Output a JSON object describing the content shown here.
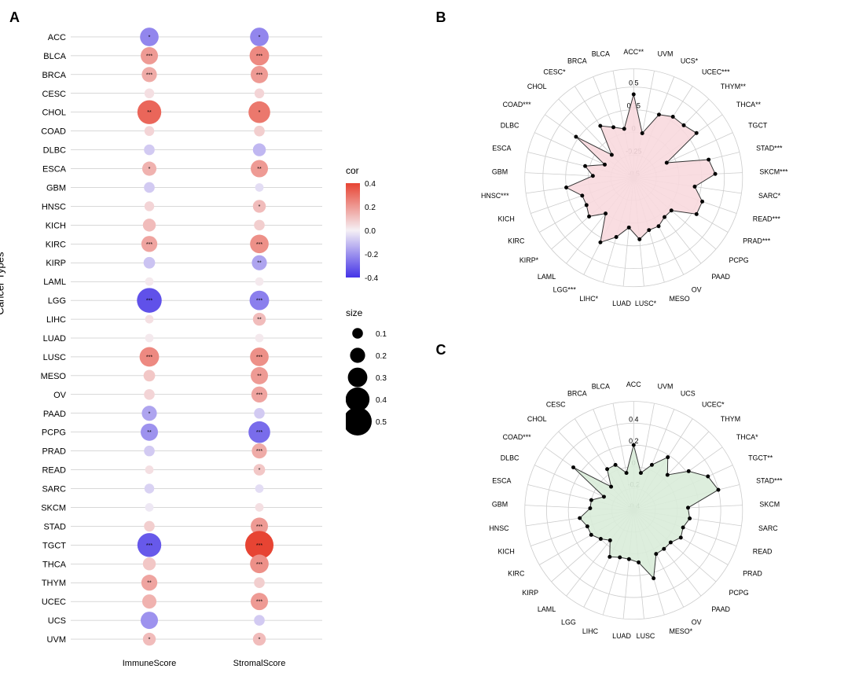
{
  "panelA": {
    "label": "A",
    "y_axis_title": "Cancer Types",
    "x_categories": [
      "ImmuneScore",
      "StromalScore"
    ],
    "cancers": [
      "ACC",
      "BLCA",
      "BRCA",
      "CESC",
      "CHOL",
      "COAD",
      "DLBC",
      "ESCA",
      "GBM",
      "HNSC",
      "KICH",
      "KIRC",
      "KIRP",
      "LAML",
      "LGG",
      "LIHC",
      "LUAD",
      "LUSC",
      "MESO",
      "OV",
      "PAAD",
      "PCPG",
      "PRAD",
      "READ",
      "SARC",
      "SKCM",
      "STAD",
      "TGCT",
      "THCA",
      "THYM",
      "UCEC",
      "UCS",
      "UVM"
    ],
    "points": {
      "ImmuneScore": [
        {
          "cor": -0.28,
          "size": 0.28,
          "sig": "*"
        },
        {
          "cor": 0.25,
          "size": 0.25,
          "sig": "***"
        },
        {
          "cor": 0.2,
          "size": 0.2,
          "sig": "***"
        },
        {
          "cor": 0.05,
          "size": 0.08,
          "sig": ""
        },
        {
          "cor": 0.4,
          "size": 0.4,
          "sig": "**"
        },
        {
          "cor": 0.08,
          "size": 0.08,
          "sig": ""
        },
        {
          "cor": -0.1,
          "size": 0.1,
          "sig": ""
        },
        {
          "cor": 0.18,
          "size": 0.18,
          "sig": "*"
        },
        {
          "cor": -0.1,
          "size": 0.1,
          "sig": ""
        },
        {
          "cor": 0.08,
          "size": 0.08,
          "sig": ""
        },
        {
          "cor": 0.15,
          "size": 0.15,
          "sig": ""
        },
        {
          "cor": 0.22,
          "size": 0.22,
          "sig": "***"
        },
        {
          "cor": -0.12,
          "size": 0.12,
          "sig": ""
        },
        {
          "cor": 0.02,
          "size": 0.05,
          "sig": ""
        },
        {
          "cor": -0.42,
          "size": 0.42,
          "sig": "***"
        },
        {
          "cor": 0.05,
          "size": 0.05,
          "sig": ""
        },
        {
          "cor": 0.02,
          "size": 0.05,
          "sig": ""
        },
        {
          "cor": 0.3,
          "size": 0.3,
          "sig": "***"
        },
        {
          "cor": 0.12,
          "size": 0.12,
          "sig": ""
        },
        {
          "cor": 0.08,
          "size": 0.1,
          "sig": ""
        },
        {
          "cor": -0.2,
          "size": 0.2,
          "sig": "*"
        },
        {
          "cor": -0.25,
          "size": 0.25,
          "sig": "**"
        },
        {
          "cor": -0.1,
          "size": 0.1,
          "sig": ""
        },
        {
          "cor": 0.05,
          "size": 0.05,
          "sig": ""
        },
        {
          "cor": -0.08,
          "size": 0.08,
          "sig": ""
        },
        {
          "cor": -0.02,
          "size": 0.05,
          "sig": ""
        },
        {
          "cor": 0.1,
          "size": 0.1,
          "sig": ""
        },
        {
          "cor": -0.4,
          "size": 0.4,
          "sig": "***"
        },
        {
          "cor": 0.12,
          "size": 0.15,
          "sig": ""
        },
        {
          "cor": 0.22,
          "size": 0.22,
          "sig": "**"
        },
        {
          "cor": 0.18,
          "size": 0.18,
          "sig": ""
        },
        {
          "cor": -0.25,
          "size": 0.25,
          "sig": ""
        },
        {
          "cor": 0.15,
          "size": 0.15,
          "sig": "*"
        }
      ],
      "StromalScore": [
        {
          "cor": -0.28,
          "size": 0.28,
          "sig": "*"
        },
        {
          "cor": 0.3,
          "size": 0.3,
          "sig": "***"
        },
        {
          "cor": 0.25,
          "size": 0.25,
          "sig": "***"
        },
        {
          "cor": 0.08,
          "size": 0.08,
          "sig": ""
        },
        {
          "cor": 0.35,
          "size": 0.35,
          "sig": "*"
        },
        {
          "cor": 0.1,
          "size": 0.1,
          "sig": ""
        },
        {
          "cor": -0.15,
          "size": 0.15,
          "sig": ""
        },
        {
          "cor": 0.25,
          "size": 0.25,
          "sig": "**"
        },
        {
          "cor": -0.05,
          "size": 0.05,
          "sig": ""
        },
        {
          "cor": 0.15,
          "size": 0.15,
          "sig": "*"
        },
        {
          "cor": 0.1,
          "size": 0.1,
          "sig": ""
        },
        {
          "cor": 0.28,
          "size": 0.28,
          "sig": "***"
        },
        {
          "cor": -0.2,
          "size": 0.2,
          "sig": "**"
        },
        {
          "cor": 0.02,
          "size": 0.05,
          "sig": ""
        },
        {
          "cor": -0.3,
          "size": 0.3,
          "sig": "***"
        },
        {
          "cor": 0.15,
          "size": 0.15,
          "sig": "**"
        },
        {
          "cor": 0.02,
          "size": 0.05,
          "sig": ""
        },
        {
          "cor": 0.28,
          "size": 0.28,
          "sig": "***"
        },
        {
          "cor": 0.25,
          "size": 0.25,
          "sig": "**"
        },
        {
          "cor": 0.22,
          "size": 0.22,
          "sig": "***"
        },
        {
          "cor": -0.1,
          "size": 0.1,
          "sig": ""
        },
        {
          "cor": -0.35,
          "size": 0.35,
          "sig": "***"
        },
        {
          "cor": 0.2,
          "size": 0.2,
          "sig": "***"
        },
        {
          "cor": 0.12,
          "size": 0.12,
          "sig": "*"
        },
        {
          "cor": -0.05,
          "size": 0.05,
          "sig": ""
        },
        {
          "cor": 0.05,
          "size": 0.05,
          "sig": ""
        },
        {
          "cor": 0.25,
          "size": 0.25,
          "sig": "***"
        },
        {
          "cor": 0.5,
          "size": 0.5,
          "sig": "***"
        },
        {
          "cor": 0.28,
          "size": 0.28,
          "sig": "***"
        },
        {
          "cor": 0.1,
          "size": 0.1,
          "sig": ""
        },
        {
          "cor": 0.25,
          "size": 0.25,
          "sig": "***"
        },
        {
          "cor": -0.1,
          "size": 0.1,
          "sig": ""
        },
        {
          "cor": 0.15,
          "size": 0.15,
          "sig": "*"
        }
      ]
    },
    "cor_legend": {
      "title": "cor",
      "stops": [
        0.4,
        0.2,
        0.0,
        -0.2,
        -0.4
      ],
      "colors": [
        "#e74433",
        "#f5b3a9",
        "#f5f0f5",
        "#b3a9f5",
        "#4433e7"
      ]
    },
    "size_legend": {
      "title": "size",
      "stops": [
        0.1,
        0.2,
        0.3,
        0.4,
        0.5
      ]
    },
    "colorbar_top": "#e74433",
    "colorbar_bottom": "#4433e7"
  },
  "panelB": {
    "label": "B",
    "fill": "#f8d9de",
    "ticks": [
      0.5,
      0.25,
      0,
      -0.25,
      -0.5
    ],
    "min": -0.5,
    "max": 0.7,
    "labels": [
      "ACC**",
      "UVM",
      "UCS*",
      "UCEC***",
      "THYM**",
      "THCA**",
      "TGCT",
      "STAD***",
      "SKCM***",
      "SARC*",
      "READ***",
      "PRAD***",
      "PCPG",
      "PAAD",
      "OV",
      "MESO",
      "LUSC*",
      "LUAD",
      "LIHC*",
      "LGG***",
      "LAML",
      "KIRP*",
      "KIRC",
      "KICH",
      "HNSC***",
      "GBM",
      "ESCA",
      "DLBC",
      "COAD***",
      "CHOL",
      "CESC*",
      "BRCA",
      "BLCA"
    ],
    "values": [
      0.42,
      0.0,
      0.25,
      0.3,
      0.3,
      0.35,
      -0.1,
      0.35,
      0.4,
      0.18,
      0.3,
      0.3,
      0.05,
      0.05,
      0.1,
      0.1,
      0.18,
      0.05,
      0.18,
      0.3,
      0.0,
      0.15,
      0.1,
      0.1,
      0.25,
      -0.05,
      0.05,
      -0.15,
      0.28,
      -0.15,
      0.18,
      0.1,
      0.05
    ]
  },
  "panelC": {
    "label": "C",
    "fill": "#d9ecd9",
    "ticks": [
      0.4,
      0.2,
      0,
      -0.2,
      -0.4
    ],
    "min": -0.4,
    "max": 0.6,
    "labels": [
      "ACC",
      "UVM",
      "UCS",
      "UCEC*",
      "THYM",
      "THCA*",
      "TGCT**",
      "STAD***",
      "SKCM",
      "SARC",
      "READ",
      "PRAD",
      "PCPG",
      "PAAD",
      "OV",
      "MESO*",
      "LUSC",
      "LUAD",
      "LIHC",
      "LGG",
      "LAML",
      "KIRP",
      "KIRC",
      "KICH",
      "HNSC",
      "GBM",
      "ESCA",
      "DLBC",
      "COAD***",
      "CHOL",
      "CESC",
      "BRCA",
      "BLCA"
    ],
    "values": [
      0.2,
      -0.05,
      0.05,
      0.18,
      0.05,
      0.22,
      0.35,
      0.4,
      0.1,
      0.12,
      0.08,
      0.1,
      0.05,
      0.05,
      0.05,
      0.25,
      0.08,
      0.05,
      0.05,
      0.08,
      -0.05,
      0.0,
      0.05,
      0.05,
      0.1,
      0.0,
      0.0,
      -0.1,
      0.28,
      -0.1,
      0.05,
      0.05,
      -0.05
    ]
  }
}
